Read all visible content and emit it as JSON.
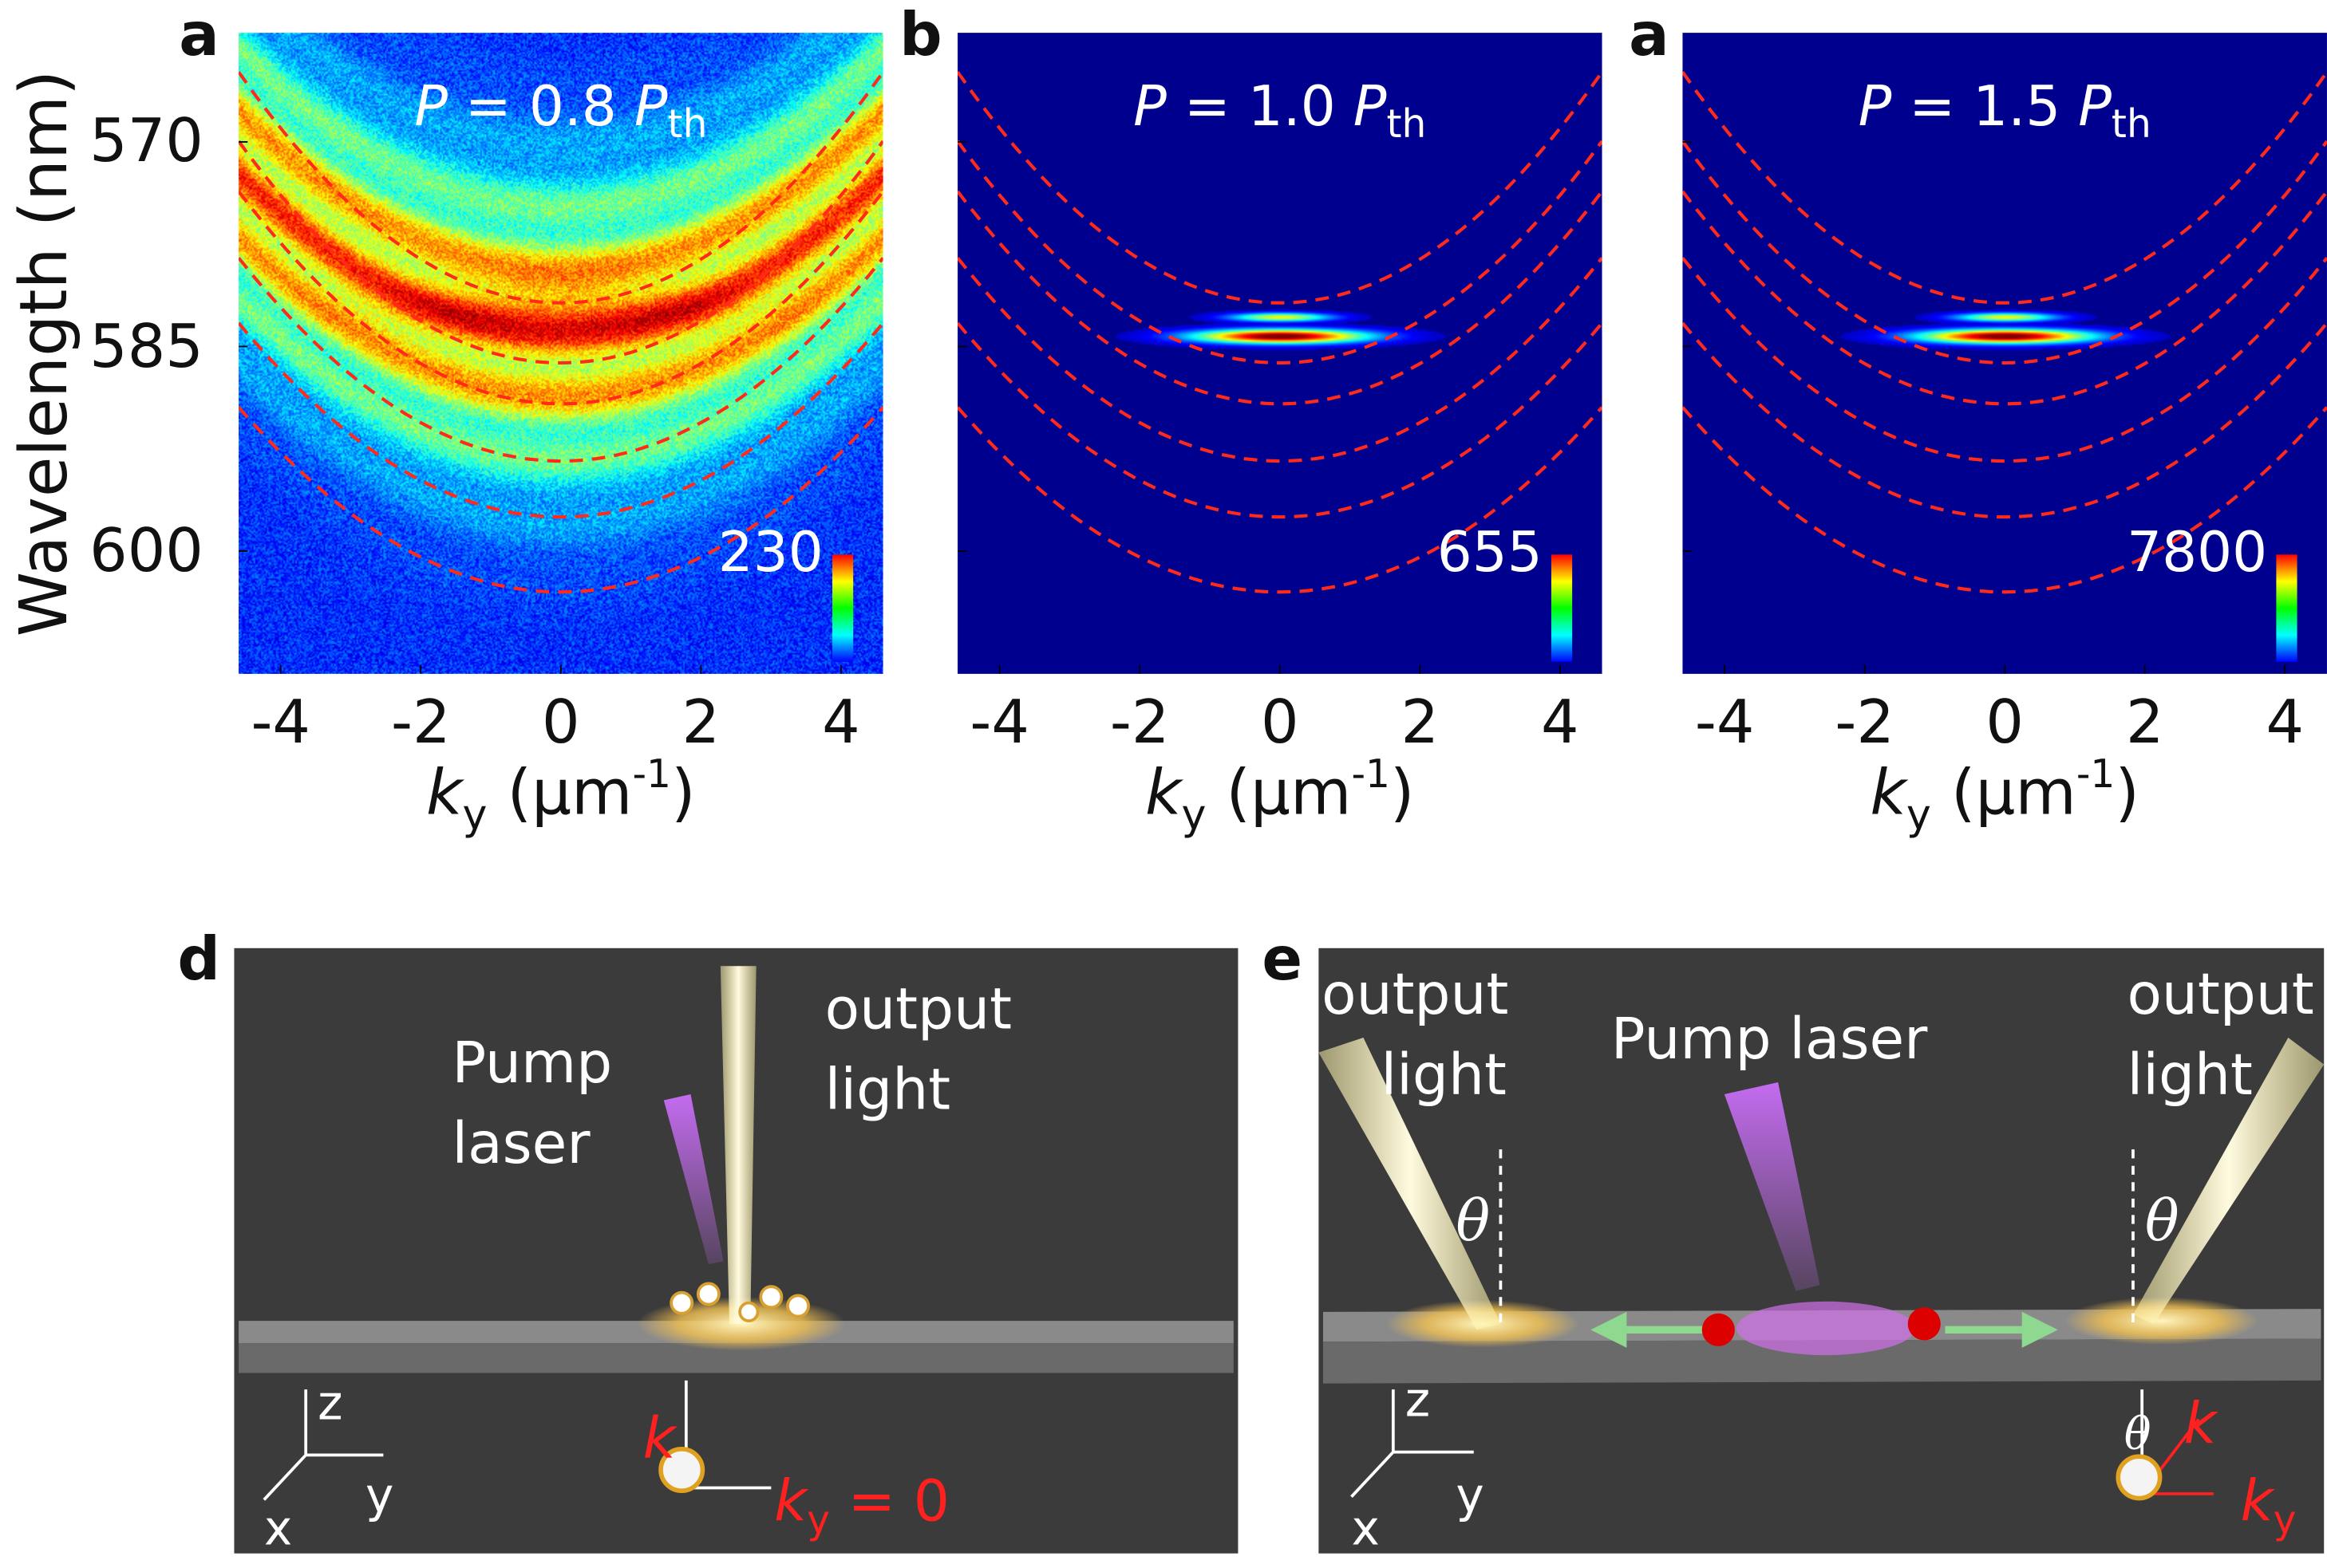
{
  "chart_data": [
    {
      "type": "heatmap",
      "panel_label": "a",
      "title": "P = 0.8 P_th",
      "title_parts": {
        "p": "P",
        "eq": " = 0.8 ",
        "pth": "P",
        "sub": "th"
      },
      "colorbar_max": "230",
      "xlabel": "k_y (μm^-1)",
      "ylabel": "Wavelength (nm)",
      "xlim": [
        -4.6,
        4.6
      ],
      "ylim": [
        562,
        609
      ],
      "xticks": [
        "-4",
        "-2",
        "0",
        "2",
        "4"
      ],
      "yticks": [
        "570",
        "585",
        "600"
      ],
      "signal": "broad",
      "dispersion_vertices_nm": [
        581.8,
        586.2,
        589.2,
        593.4,
        597.5,
        603.0
      ],
      "curvature_nm_per_um2": 0.8
    },
    {
      "type": "heatmap",
      "panel_label": "b",
      "title": "P = 1.0 P_th",
      "title_parts": {
        "p": "P",
        "eq": " = 1.0 ",
        "pth": "P",
        "sub": "th"
      },
      "colorbar_max": "655",
      "xlabel": "k_y (μm^-1)",
      "xlim": [
        -4.6,
        4.6
      ],
      "ylim": [
        562,
        609
      ],
      "xticks": [
        "-4",
        "-2",
        "0",
        "2",
        "4"
      ],
      "signal": "condensed",
      "dispersion_vertices_nm": [
        581.8,
        586.2,
        589.2,
        593.4,
        597.5,
        603.0
      ],
      "curvature_nm_per_um2": 0.8
    },
    {
      "type": "heatmap",
      "panel_label": "a",
      "title": "P = 1.5 P_th",
      "title_parts": {
        "p": "P",
        "eq": " = 1.5 ",
        "pth": "P",
        "sub": "th"
      },
      "colorbar_max": "7800",
      "xlabel": "k_y (μm^-1)",
      "xlim": [
        -4.6,
        4.6
      ],
      "ylim": [
        562,
        609
      ],
      "xticks": [
        "-4",
        "-2",
        "0",
        "2",
        "4"
      ],
      "signal": "condensed",
      "dispersion_vertices_nm": [
        581.8,
        586.2,
        589.2,
        593.4,
        597.5,
        603.0
      ],
      "curvature_nm_per_um2": 0.8
    }
  ],
  "diagram_d": {
    "label": "d",
    "pump": [
      "Pump",
      "laser"
    ],
    "output": [
      "output",
      "light"
    ],
    "axes": {
      "z": "z",
      "y": "y",
      "x": "x"
    },
    "k": "k",
    "ky": "k",
    "ky_sub": "y",
    "ky_eq": " = 0"
  },
  "diagram_e": {
    "label": "e",
    "pump": "Pump laser",
    "output_left": [
      "output",
      "light"
    ],
    "output_right": [
      "output",
      "light"
    ],
    "theta": "θ",
    "axes": {
      "z": "z",
      "y": "y",
      "x": "x"
    },
    "k": "k",
    "ky": "k",
    "ky_sub": "y"
  },
  "colors": {
    "dash": "#ff2a1a",
    "bg_blue": "#00008f",
    "scene": "#3b3b3b",
    "slab": "#7a7a7a",
    "beam": "#fff3a8",
    "pump": "#c46cf0"
  }
}
